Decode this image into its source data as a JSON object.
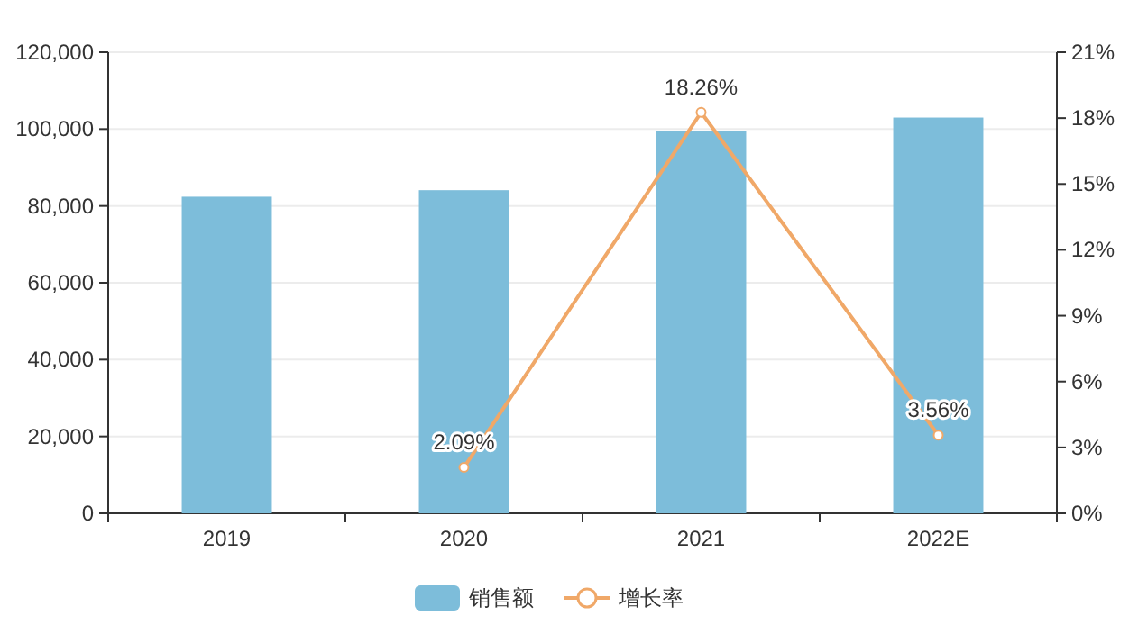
{
  "chart_data": {
    "type": "bar",
    "categories": [
      "2019",
      "2020",
      "2021",
      "2022E"
    ],
    "series": [
      {
        "name": "销售额",
        "color": "#7dbdda",
        "values": [
          82400,
          84100,
          99500,
          103000
        ]
      },
      {
        "name": "增长率",
        "type": "line",
        "axis": "y2",
        "color": "#f0a868",
        "marker": "circle",
        "values": [
          null,
          2.09,
          18.26,
          3.56
        ],
        "value_labels": [
          null,
          "2.09%",
          "18.26%",
          "3.56%"
        ]
      }
    ],
    "ylim": [
      0,
      120000
    ],
    "yticks": [
      {
        "value": 0,
        "label": "0"
      },
      {
        "value": 20000,
        "label": "20,000"
      },
      {
        "value": 40000,
        "label": "40,000"
      },
      {
        "value": 60000,
        "label": "60,000"
      },
      {
        "value": 80000,
        "label": "80,000"
      },
      {
        "value": 100000,
        "label": "100,000"
      },
      {
        "value": 120000,
        "label": "120,000"
      }
    ],
    "y2lim": [
      0,
      21
    ],
    "y2ticks": [
      {
        "value": 0,
        "label": "0%"
      },
      {
        "value": 3,
        "label": "3%"
      },
      {
        "value": 6,
        "label": "6%"
      },
      {
        "value": 9,
        "label": "9%"
      },
      {
        "value": 12,
        "label": "12%"
      },
      {
        "value": 15,
        "label": "15%"
      },
      {
        "value": 18,
        "label": "18%"
      },
      {
        "value": 21,
        "label": "21%"
      }
    ],
    "grid": "y",
    "legend": "bottom"
  }
}
